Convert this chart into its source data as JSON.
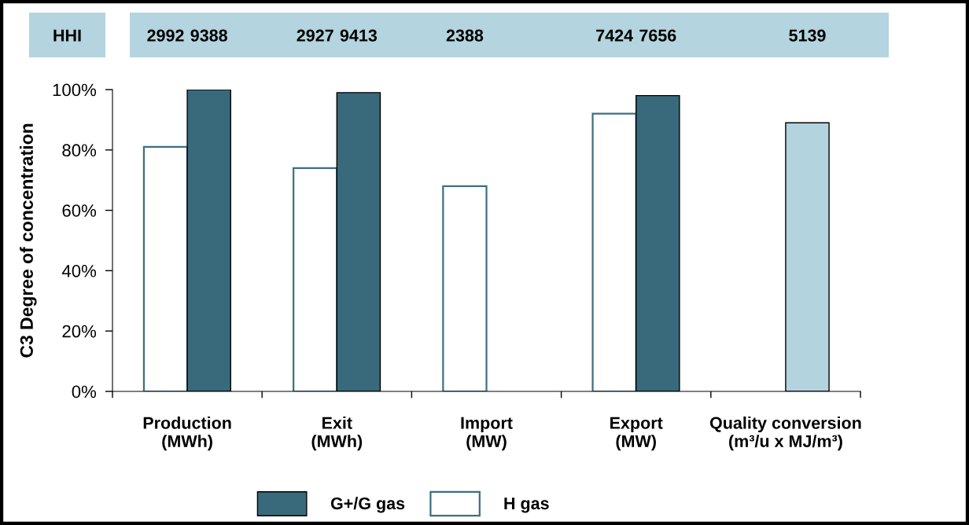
{
  "chart_data": {
    "type": "bar",
    "ylabel": "C3 Degree of concentration",
    "categories": [
      "Production\n(MWh)",
      "Exit\n(MWh)",
      "Import\n(MW)",
      "Export\n(MW)",
      "Quality conversion (m³/u x MJ/m³)"
    ],
    "series": [
      {
        "name": "H gas",
        "color": "#ffffff",
        "values": [
          81,
          74,
          68,
          92,
          null
        ]
      },
      {
        "name": "G+/G gas",
        "color": "#386a7c",
        "values": [
          100,
          99,
          null,
          98,
          null
        ]
      },
      {
        "color": "#b3d3de",
        "values": [
          null,
          null,
          null,
          null,
          89
        ]
      }
    ],
    "ylim": [
      0,
      100
    ],
    "yticks": [
      {
        "value": 0,
        "label": "0%"
      },
      {
        "value": 20,
        "label": "20%"
      },
      {
        "value": 40,
        "label": "40%"
      },
      {
        "value": 60,
        "label": "60%"
      },
      {
        "value": 80,
        "label": "80%"
      },
      {
        "value": 100,
        "label": "100%"
      }
    ],
    "annotations": [
      "HHI",
      "2992",
      "9388",
      "2927",
      "9413",
      "2388",
      "7424",
      "7656",
      "5139"
    ],
    "legend": "bottom"
  }
}
